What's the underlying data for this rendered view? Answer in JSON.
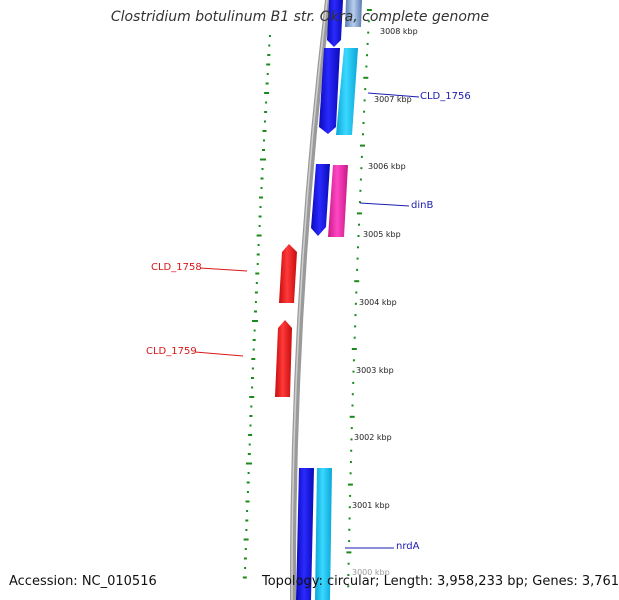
{
  "title": "Clostridium botulinum B1 str. Okra, complete genome",
  "footer": {
    "accession": "Accession: NC_010516",
    "topology": "Topology: circular; Length: 3,958,233 bp; Genes: 3,761"
  },
  "scale_labels": [
    "3008 kbp",
    "3007 kbp",
    "3006 kbp",
    "3005 kbp",
    "3004 kbp",
    "3003 kbp",
    "3002 kbp",
    "3001 kbp",
    "3000 kbp"
  ],
  "gene_labels": {
    "cld_1756": "CLD_1756",
    "dinb": "dinB",
    "cld_1758": "CLD_1758",
    "cld_1759": "CLD_1759",
    "nrda": "nrdA"
  },
  "colors": {
    "forward_gene": "#1414e6",
    "forward_gene_light": "#1ec3f0",
    "dinb_gene": "#e62aa2",
    "reverse_gene": "#ec1c1c",
    "backbone": "#8a8a8a",
    "gc_ticks": "#1a8a1a",
    "label_blue": "#1b1bb0",
    "label_red": "#d81818"
  }
}
